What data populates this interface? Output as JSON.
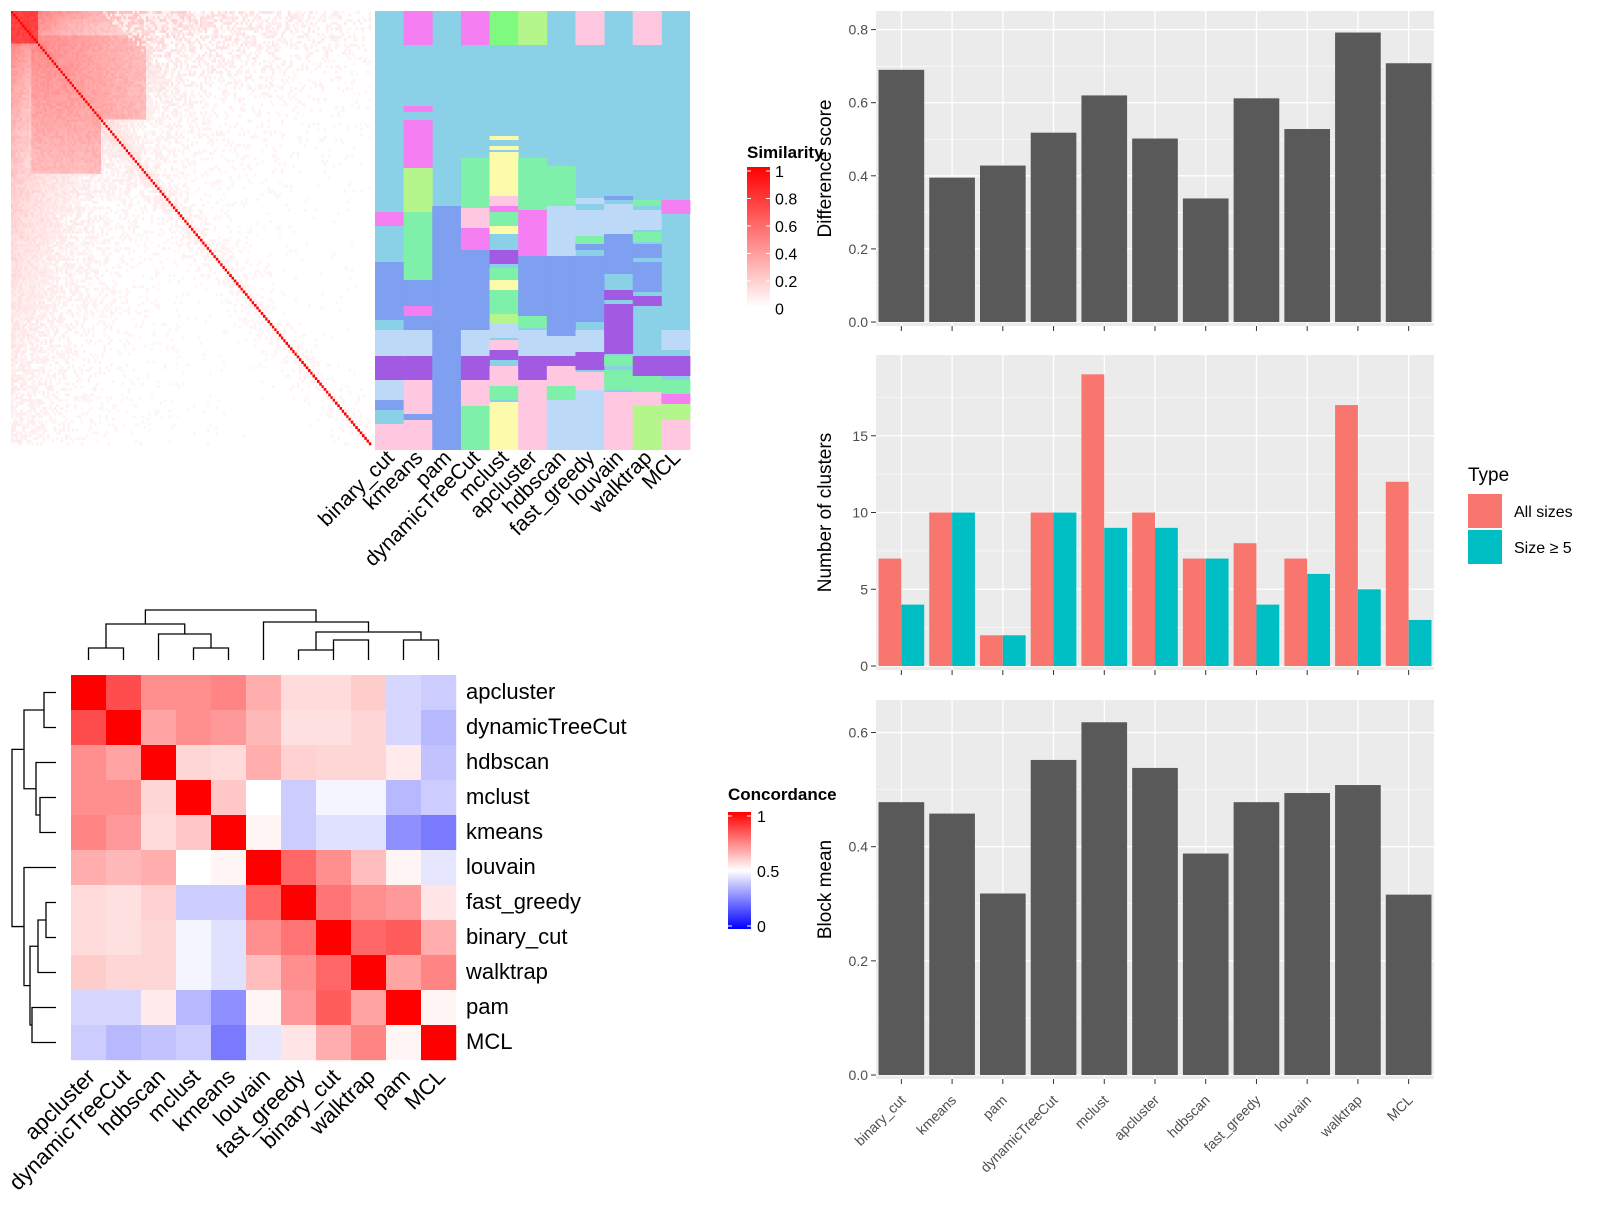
{
  "methods_sim": [
    "binary_cut",
    "kmeans",
    "pam",
    "dynamicTreeCut",
    "mclust",
    "apcluster",
    "hdbscan",
    "fast_greedy",
    "louvain",
    "walktrap",
    "MCL"
  ],
  "legend_sim": {
    "title": "Similarity",
    "ticks": [
      "1",
      "0.8",
      "0.6",
      "0.4",
      "0.2",
      "0"
    ],
    "low_color": "#ffffff",
    "high_color": "#ff0000"
  },
  "legend_conc": {
    "title": "Concordance",
    "ticks": [
      "1",
      "0.5",
      "0"
    ],
    "low_color": "#0000ff",
    "mid_color": "#ffffff",
    "high_color": "#ff0000"
  },
  "palette": {
    "bar_fill": "#595959",
    "panel_bg": "#ebebeb",
    "grid": "#ffffff",
    "all_sizes": "#f8766d",
    "size5": "#00bfc4",
    "cluster_colors": [
      "#8ad0e6",
      "#f57ef3",
      "#7f9ff0",
      "#a35ae3",
      "#bcd9f7",
      "#ffc7e0",
      "#7ff0a9",
      "#ffff8f",
      "#b4f58c",
      "#7ffa7f",
      "#fbfbab"
    ]
  },
  "chart_data": [
    {
      "type": "heatmap",
      "name": "similarity_matrix",
      "description_scale": [
        0,
        1
      ],
      "n": 160
    },
    {
      "type": "heatmap",
      "name": "concordance",
      "categories": [
        "apcluster",
        "dynamicTreeCut",
        "hdbscan",
        "mclust",
        "kmeans",
        "louvain",
        "fast_greedy",
        "binary_cut",
        "walktrap",
        "pam",
        "MCL"
      ],
      "values": [
        [
          1.0,
          0.85,
          0.72,
          0.72,
          0.74,
          0.66,
          0.57,
          0.57,
          0.6,
          0.42,
          0.4
        ],
        [
          0.85,
          1.0,
          0.68,
          0.72,
          0.7,
          0.64,
          0.56,
          0.56,
          0.58,
          0.42,
          0.36
        ],
        [
          0.72,
          0.68,
          1.0,
          0.58,
          0.57,
          0.66,
          0.59,
          0.58,
          0.58,
          0.54,
          0.38
        ],
        [
          0.72,
          0.72,
          0.58,
          1.0,
          0.61,
          0.5,
          0.4,
          0.48,
          0.48,
          0.36,
          0.4
        ],
        [
          0.74,
          0.7,
          0.57,
          0.61,
          1.0,
          0.52,
          0.4,
          0.44,
          0.44,
          0.28,
          0.24
        ],
        [
          0.66,
          0.64,
          0.66,
          0.5,
          0.52,
          1.0,
          0.8,
          0.72,
          0.63,
          0.52,
          0.45
        ],
        [
          0.57,
          0.56,
          0.59,
          0.4,
          0.4,
          0.8,
          1.0,
          0.77,
          0.72,
          0.7,
          0.55
        ],
        [
          0.57,
          0.56,
          0.58,
          0.48,
          0.44,
          0.72,
          0.77,
          1.0,
          0.8,
          0.82,
          0.66
        ],
        [
          0.6,
          0.58,
          0.58,
          0.48,
          0.44,
          0.63,
          0.72,
          0.8,
          1.0,
          0.68,
          0.74
        ],
        [
          0.42,
          0.42,
          0.54,
          0.36,
          0.28,
          0.52,
          0.7,
          0.82,
          0.68,
          1.0,
          0.52
        ],
        [
          0.4,
          0.36,
          0.38,
          0.4,
          0.24,
          0.45,
          0.55,
          0.66,
          0.74,
          0.52,
          1.0
        ]
      ],
      "ylim": [
        0,
        1
      ]
    },
    {
      "type": "bar",
      "name": "difference_score",
      "categories": [
        "binary_cut",
        "kmeans",
        "pam",
        "dynamicTreeCut",
        "mclust",
        "apcluster",
        "hdbscan",
        "fast_greedy",
        "louvain",
        "walktrap",
        "MCL"
      ],
      "values": [
        0.69,
        0.395,
        0.428,
        0.518,
        0.62,
        0.502,
        0.338,
        0.612,
        0.528,
        0.792,
        0.708
      ],
      "xlabel": "",
      "ylabel": "Difference score",
      "yticks": [
        "0.0",
        "0.2",
        "0.4",
        "0.6",
        "0.8"
      ],
      "ylim": [
        0,
        0.84
      ]
    },
    {
      "type": "bar",
      "name": "number_of_clusters",
      "categories": [
        "binary_cut",
        "kmeans",
        "pam",
        "dynamicTreeCut",
        "mclust",
        "apcluster",
        "hdbscan",
        "fast_greedy",
        "louvain",
        "walktrap",
        "MCL"
      ],
      "series": [
        {
          "name": "All sizes",
          "values": [
            7,
            10,
            2,
            10,
            19,
            10,
            7,
            8,
            7,
            17,
            12
          ]
        },
        {
          "name": "Size ≥ 5",
          "values": [
            4,
            10,
            2,
            10,
            9,
            9,
            7,
            4,
            6,
            5,
            3
          ]
        }
      ],
      "ylabel": "Number of clusters",
      "yticks": [
        "0",
        "5",
        "10",
        "15"
      ],
      "ylim": [
        0,
        20
      ],
      "legend_title": "Type",
      "legend_position": "right"
    },
    {
      "type": "bar",
      "name": "block_mean",
      "categories": [
        "binary_cut",
        "kmeans",
        "pam",
        "dynamicTreeCut",
        "mclust",
        "apcluster",
        "hdbscan",
        "fast_greedy",
        "louvain",
        "walktrap",
        "MCL"
      ],
      "values": [
        0.478,
        0.458,
        0.318,
        0.552,
        0.618,
        0.538,
        0.388,
        0.478,
        0.494,
        0.508,
        0.316
      ],
      "xlabel": "",
      "ylabel": "Block mean",
      "yticks": [
        "0.0",
        "0.2",
        "0.4",
        "0.6"
      ],
      "ylim": [
        0,
        0.65
      ]
    }
  ]
}
